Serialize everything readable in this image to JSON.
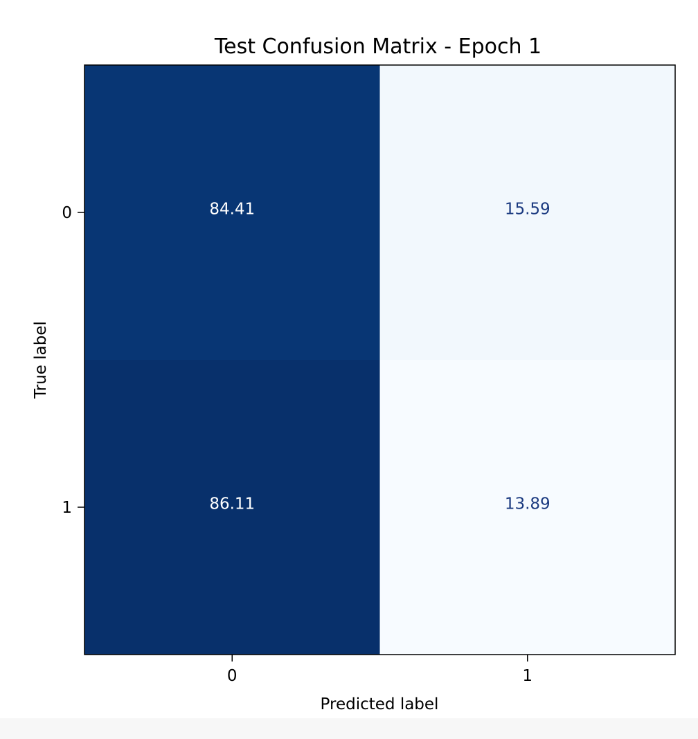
{
  "chart_data": {
    "type": "heatmap",
    "title": "Test Confusion Matrix - Epoch 1",
    "xlabel": "Predicted label",
    "ylabel": "True label",
    "x_categories": [
      "0",
      "1"
    ],
    "y_categories": [
      "0",
      "1"
    ],
    "values": [
      [
        84.41,
        15.59
      ],
      [
        86.11,
        13.89
      ]
    ],
    "value_labels": [
      [
        "84.41",
        "15.59"
      ],
      [
        "86.11",
        "13.89"
      ]
    ],
    "colormap": "Blues",
    "colorbar": false,
    "colors": {
      "cell_dark_top": "#183670",
      "cell_dark_bottom": "#152f66",
      "cell_light_top": "#eff4fb",
      "cell_light_bottom": "#f5f9fe",
      "text_on_dark": "#ffffff",
      "text_on_light": "#1b3a80"
    }
  }
}
